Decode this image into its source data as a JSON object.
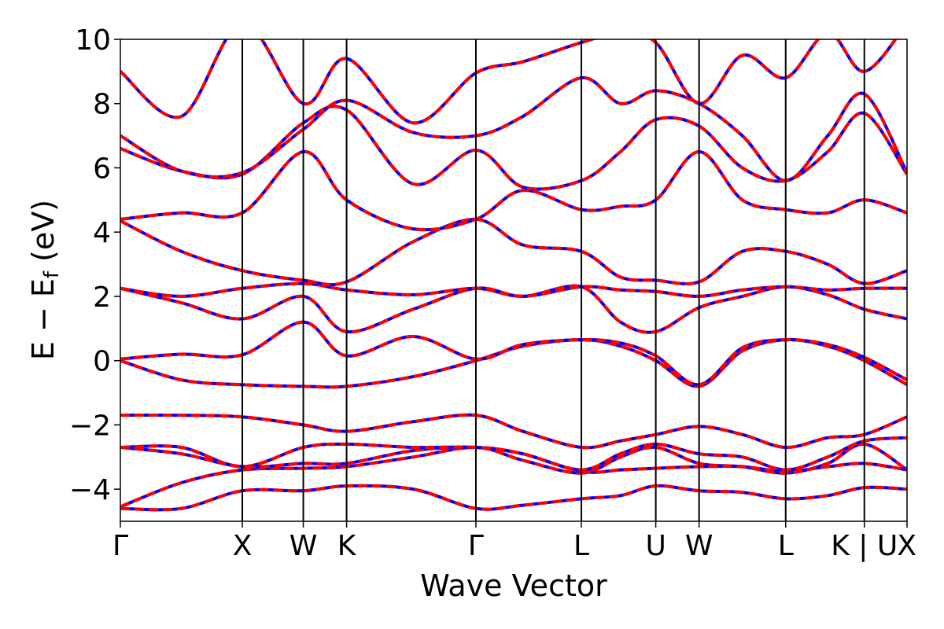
{
  "chart_data": {
    "type": "line",
    "title": "",
    "xlabel": "Wave Vector",
    "ylabel": "E − E",
    "ylabel_sub": "f",
    "ylabel_unit": " (eV)",
    "ylim": [
      -5,
      10
    ],
    "yticks": [
      10,
      8,
      6,
      4,
      2,
      0,
      -2,
      -4
    ],
    "ytick_labels": [
      "10",
      "8",
      "6",
      "4",
      "2",
      "0",
      "−2",
      "−4"
    ],
    "xlim": [
      0,
      6.45
    ],
    "kpoints": [
      {
        "label": "Γ",
        "x": 0.0
      },
      {
        "label": "X",
        "x": 1.0
      },
      {
        "label": "W",
        "x": 1.5
      },
      {
        "label": "K",
        "x": 1.855
      },
      {
        "label": "Γ",
        "x": 2.915
      },
      {
        "label": "L",
        "x": 3.78
      },
      {
        "label": "U",
        "x": 4.39
      },
      {
        "label": "W",
        "x": 4.745
      },
      {
        "label": "L",
        "x": 5.455
      },
      {
        "label": "K | U",
        "x": 6.1
      },
      {
        "label": "X",
        "x": 6.45
      }
    ],
    "grid": false,
    "series_colors": {
      "dashed": "#0000ff",
      "solid": "#ff0000"
    },
    "bands": [
      {
        "x": [
          0,
          0.5,
          1.0,
          1.5,
          1.855,
          2.4,
          2.915,
          3.3,
          3.78,
          4.1,
          4.39,
          4.745,
          5.1,
          5.455,
          5.8,
          6.1,
          6.45
        ],
        "y": [
          -4.6,
          -4.6,
          -4.05,
          -4.05,
          -3.9,
          -4.0,
          -4.6,
          -4.5,
          -4.3,
          -4.2,
          -3.9,
          -4.05,
          -4.1,
          -4.3,
          -4.2,
          -3.95,
          -4.0
        ]
      },
      {
        "x": [
          0,
          0.5,
          1.0,
          1.5,
          1.855,
          2.4,
          2.915,
          3.3,
          3.78,
          4.1,
          4.39,
          4.745,
          5.1,
          5.455,
          5.8,
          6.1,
          6.45
        ],
        "y": [
          -4.55,
          -3.8,
          -3.4,
          -3.35,
          -3.3,
          -3.0,
          -2.7,
          -3.1,
          -3.5,
          -3.0,
          -2.7,
          -3.2,
          -3.3,
          -3.5,
          -3.2,
          -2.6,
          -3.4
        ]
      },
      {
        "x": [
          0,
          0.5,
          1.0,
          1.5,
          1.855,
          2.4,
          2.915,
          3.3,
          3.78,
          4.1,
          4.39,
          4.745,
          5.1,
          5.455,
          5.8,
          6.1,
          6.45
        ],
        "y": [
          -2.7,
          -2.9,
          -3.3,
          -3.2,
          -3.2,
          -2.8,
          -2.7,
          -2.9,
          -3.45,
          -3.4,
          -3.35,
          -3.3,
          -3.3,
          -3.45,
          -3.3,
          -3.2,
          -3.4
        ]
      },
      {
        "x": [
          0,
          0.5,
          1.0,
          1.5,
          1.855,
          2.4,
          2.915,
          3.3,
          3.78,
          4.1,
          4.39,
          4.745,
          5.1,
          5.455,
          5.8,
          6.1,
          6.45
        ],
        "y": [
          -2.7,
          -2.7,
          -3.3,
          -2.7,
          -2.6,
          -2.7,
          -2.7,
          -2.9,
          -3.4,
          -2.9,
          -2.6,
          -2.9,
          -3.0,
          -3.4,
          -3.0,
          -2.5,
          -2.4
        ]
      },
      {
        "x": [
          0,
          0.5,
          1.0,
          1.5,
          1.855,
          2.4,
          2.915,
          3.3,
          3.78,
          4.1,
          4.39,
          4.745,
          5.1,
          5.455,
          5.8,
          6.1,
          6.45
        ],
        "y": [
          -1.7,
          -1.7,
          -1.75,
          -2.0,
          -2.2,
          -1.9,
          -1.7,
          -2.2,
          -2.7,
          -2.5,
          -2.3,
          -2.05,
          -2.3,
          -2.7,
          -2.4,
          -2.3,
          -1.75
        ]
      },
      {
        "x": [
          0,
          0.5,
          1.0,
          1.5,
          1.855,
          2.4,
          2.915,
          3.3,
          3.78,
          4.1,
          4.39,
          4.745,
          5.1,
          5.455,
          5.8,
          6.1,
          6.45
        ],
        "y": [
          0.0,
          -0.6,
          -0.75,
          -0.8,
          -0.8,
          -0.5,
          0.0,
          0.45,
          0.65,
          0.45,
          0.0,
          -0.8,
          0.3,
          0.65,
          0.45,
          0.0,
          -0.75
        ]
      },
      {
        "x": [
          0,
          0.5,
          1.0,
          1.5,
          1.855,
          2.4,
          2.915,
          3.3,
          3.78,
          4.1,
          4.39,
          4.745,
          5.1,
          5.455,
          5.8,
          6.1,
          6.45
        ],
        "y": [
          0.05,
          0.2,
          0.18,
          1.2,
          0.15,
          0.75,
          0.05,
          0.5,
          0.65,
          0.55,
          0.15,
          -0.75,
          0.4,
          0.65,
          0.5,
          0.1,
          -0.6
        ]
      },
      {
        "x": [
          0,
          0.5,
          1.0,
          1.5,
          1.855,
          2.4,
          2.915,
          3.3,
          3.78,
          4.1,
          4.39,
          4.745,
          5.1,
          5.455,
          5.8,
          6.1,
          6.45
        ],
        "y": [
          2.25,
          1.8,
          1.3,
          2.0,
          0.9,
          1.6,
          2.25,
          2.0,
          2.3,
          1.2,
          0.9,
          1.65,
          2.0,
          2.3,
          2.05,
          1.6,
          1.3
        ]
      },
      {
        "x": [
          0,
          0.5,
          1.0,
          1.5,
          1.855,
          2.4,
          2.915,
          3.3,
          3.78,
          4.1,
          4.39,
          4.745,
          5.1,
          5.455,
          5.8,
          6.1,
          6.45
        ],
        "y": [
          2.25,
          2.0,
          2.25,
          2.4,
          2.2,
          2.05,
          2.25,
          2.0,
          2.3,
          2.2,
          2.15,
          2.0,
          2.2,
          2.3,
          2.2,
          2.25,
          2.25
        ]
      },
      {
        "x": [
          0,
          0.5,
          1.0,
          1.5,
          1.855,
          2.4,
          2.915,
          3.3,
          3.78,
          4.1,
          4.39,
          4.745,
          5.1,
          5.455,
          5.8,
          6.1,
          6.45
        ],
        "y": [
          4.35,
          3.4,
          2.8,
          2.5,
          2.45,
          3.7,
          4.4,
          3.6,
          3.4,
          2.6,
          2.5,
          2.45,
          3.4,
          3.4,
          3.0,
          2.4,
          2.8
        ]
      },
      {
        "x": [
          0,
          0.5,
          1.0,
          1.5,
          1.855,
          2.4,
          2.915,
          3.3,
          3.78,
          4.1,
          4.39,
          4.745,
          5.1,
          5.455,
          5.8,
          6.1,
          6.45
        ],
        "y": [
          4.4,
          4.6,
          4.6,
          6.5,
          5.0,
          4.1,
          4.4,
          5.3,
          4.7,
          4.8,
          5.0,
          6.5,
          5.0,
          4.7,
          4.6,
          5.0,
          4.6
        ]
      },
      {
        "x": [
          0,
          0.5,
          1.0,
          1.5,
          1.855,
          2.4,
          2.915,
          3.3,
          3.78,
          4.1,
          4.39,
          4.745,
          5.1,
          5.455,
          5.8,
          6.1,
          6.45
        ],
        "y": [
          6.6,
          5.9,
          5.8,
          7.4,
          7.8,
          5.5,
          6.55,
          5.4,
          5.6,
          6.5,
          7.5,
          7.3,
          6.0,
          5.6,
          6.5,
          7.7,
          5.8
        ]
      },
      {
        "x": [
          0,
          0.5,
          1.0,
          1.5,
          1.855,
          2.4,
          2.915,
          3.3,
          3.78,
          4.1,
          4.39,
          4.745,
          5.1,
          5.455,
          5.8,
          6.1,
          6.45
        ],
        "y": [
          7.0,
          5.9,
          5.85,
          7.2,
          8.1,
          7.1,
          7.0,
          7.6,
          8.8,
          8.0,
          8.4,
          8.0,
          7.0,
          5.6,
          7.0,
          8.3,
          5.85
        ]
      },
      {
        "x": [
          0,
          0.5,
          1.0,
          1.5,
          1.855,
          2.4,
          2.915,
          3.3,
          3.78,
          4.1,
          4.39,
          4.745,
          5.1,
          5.455,
          5.8,
          6.1,
          6.45
        ],
        "y": [
          9.0,
          7.6,
          10.5,
          8.0,
          9.4,
          7.4,
          8.95,
          9.3,
          9.9,
          10.2,
          9.9,
          8.0,
          9.5,
          8.8,
          10.2,
          9.0,
          10.5
        ]
      }
    ]
  }
}
